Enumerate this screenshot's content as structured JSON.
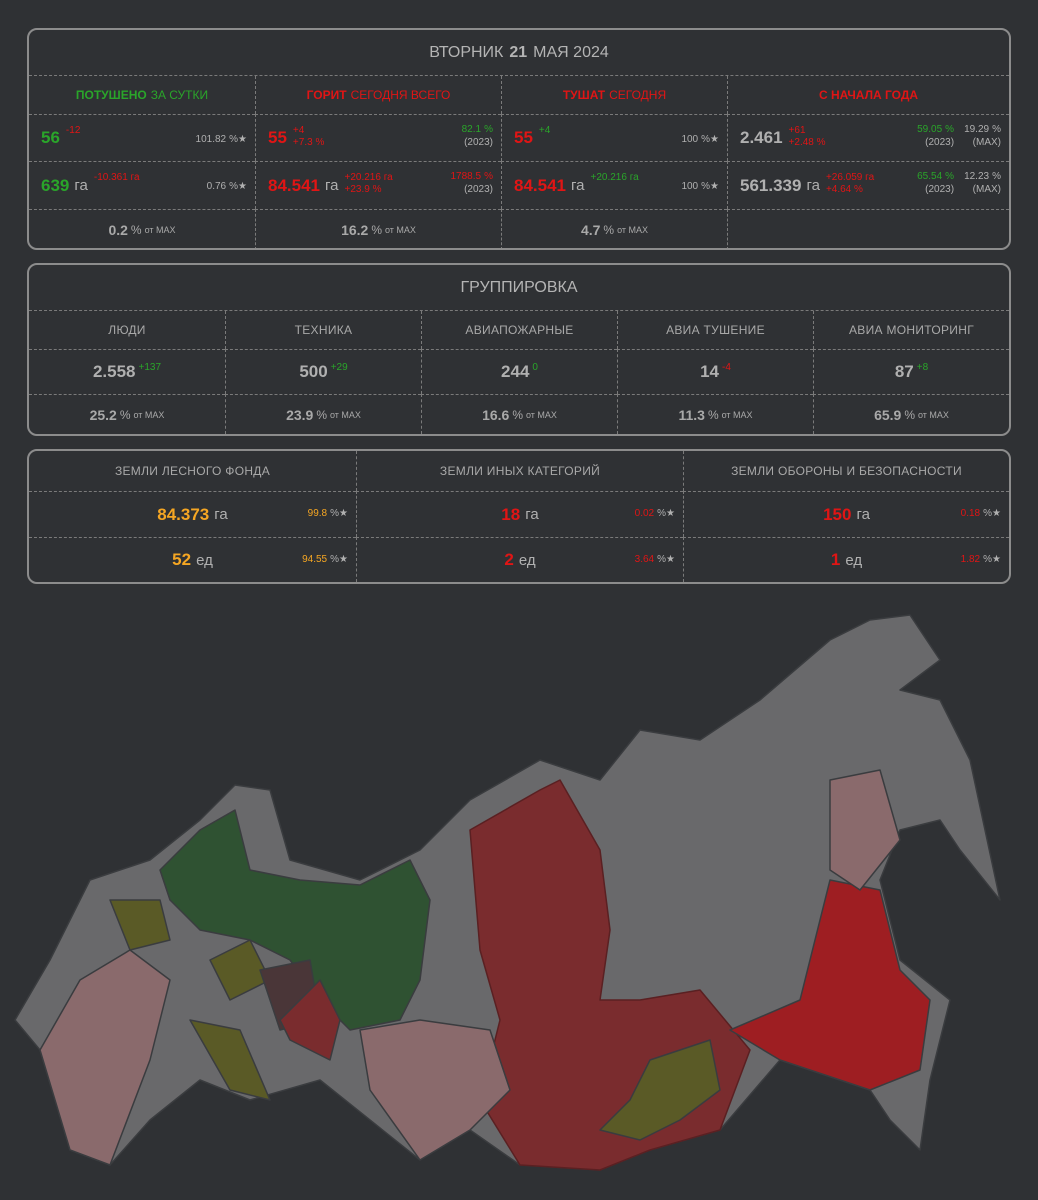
{
  "header": {
    "day": "ВТОРНИК",
    "date": "21",
    "month_year": "МАЯ 2024"
  },
  "units": {
    "percent": "%",
    "star": "★",
    "ha": "га",
    "ed": "ед",
    "of_max": "от MAX"
  },
  "status": {
    "columns": [
      {
        "heading": [
          "ПОТУШЕНО",
          "ЗА СУТКИ"
        ],
        "heading_color": "green",
        "value_color": "green",
        "delta_color": "red",
        "count": {
          "value": "56",
          "deltas": [
            "-12"
          ],
          "shares": [
            {
              "value": "101.82",
              "star": true
            }
          ]
        },
        "area": {
          "value": "639",
          "deltas": [
            "-10.361 га"
          ],
          "shares": [
            {
              "value": "0.76",
              "star": true
            }
          ]
        },
        "of_max": "0.2"
      },
      {
        "heading": [
          "ГОРИТ",
          "СЕГОДНЯ ВСЕГО"
        ],
        "heading_color": "red",
        "value_color": "red",
        "delta_color": "red",
        "count": {
          "value": "55",
          "deltas": [
            "+4",
            "+7.3 %"
          ],
          "shares": [
            {
              "value": "82.1",
              "note": "(2023)",
              "color": "green"
            }
          ]
        },
        "area": {
          "value": "84.541",
          "deltas": [
            "+20.216 га",
            "+23.9 %"
          ],
          "shares": [
            {
              "value": "1788.5",
              "note": "(2023)",
              "color": "red"
            }
          ]
        },
        "of_max": "16.2"
      },
      {
        "heading": [
          "ТУШАТ",
          "СЕГОДНЯ"
        ],
        "heading_color": "red",
        "value_color": "red",
        "delta_color": "green",
        "count": {
          "value": "55",
          "deltas": [
            "+4"
          ],
          "shares": [
            {
              "value": "100",
              "star": true
            }
          ]
        },
        "area": {
          "value": "84.541",
          "deltas": [
            "+20.216 га"
          ],
          "shares": [
            {
              "value": "100",
              "star": true
            }
          ]
        },
        "of_max": "4.7"
      },
      {
        "heading": [
          "С НАЧАЛА ГОДА"
        ],
        "heading_color": "red",
        "value_color": "gray",
        "delta_color": "red",
        "count": {
          "value": "2.461",
          "deltas": [
            "+61",
            "+2.48 %"
          ],
          "shares": [
            {
              "value": "59.05",
              "note": "(2023)",
              "color": "green"
            },
            {
              "value": "19.29",
              "note": "(MAX)"
            }
          ]
        },
        "area": {
          "value": "561.339",
          "deltas": [
            "+26.059 га",
            "+4.64 %"
          ],
          "shares": [
            {
              "value": "65.54",
              "note": "(2023)",
              "color": "green"
            },
            {
              "value": "12.23",
              "note": "(MAX)"
            }
          ]
        }
      }
    ]
  },
  "group": {
    "title": "ГРУППИРОВКА",
    "columns": [
      {
        "label": "ЛЮДИ",
        "value": "2.558",
        "delta": "+137",
        "delta_color": "green",
        "of_max": "25.2"
      },
      {
        "label": "ТЕХНИКА",
        "value": "500",
        "delta": "+29",
        "delta_color": "green",
        "of_max": "23.9"
      },
      {
        "label": "АВИАПОЖАРНЫЕ",
        "value": "244",
        "delta": "0",
        "delta_color": "green",
        "of_max": "16.6"
      },
      {
        "label": "АВИА ТУШЕНИЕ",
        "value": "14",
        "delta": "-4",
        "delta_color": "red",
        "of_max": "11.3"
      },
      {
        "label": "АВИА МОНИТОРИНГ",
        "value": "87",
        "delta": "+8",
        "delta_color": "green",
        "of_max": "65.9"
      }
    ]
  },
  "lands": {
    "columns": [
      {
        "label": "ЗЕМЛИ ЛЕСНОГО ФОНДА",
        "color": "orange",
        "area": {
          "value": "84.373",
          "share": "99.8"
        },
        "count": {
          "value": "52",
          "share": "94.55"
        }
      },
      {
        "label": "ЗЕМЛИ ИНЫХ КАТЕГОРИЙ",
        "color": "red",
        "area": {
          "value": "18",
          "share": "0.02"
        },
        "count": {
          "value": "2",
          "share": "3.64"
        }
      },
      {
        "label": "ЗЕМЛИ ОБОРОНЫ И БЕЗОПАСНОСТИ",
        "color": "red",
        "area": {
          "value": "150",
          "share": "0.18"
        },
        "count": {
          "value": "1",
          "share": "1.82"
        }
      }
    ]
  }
}
